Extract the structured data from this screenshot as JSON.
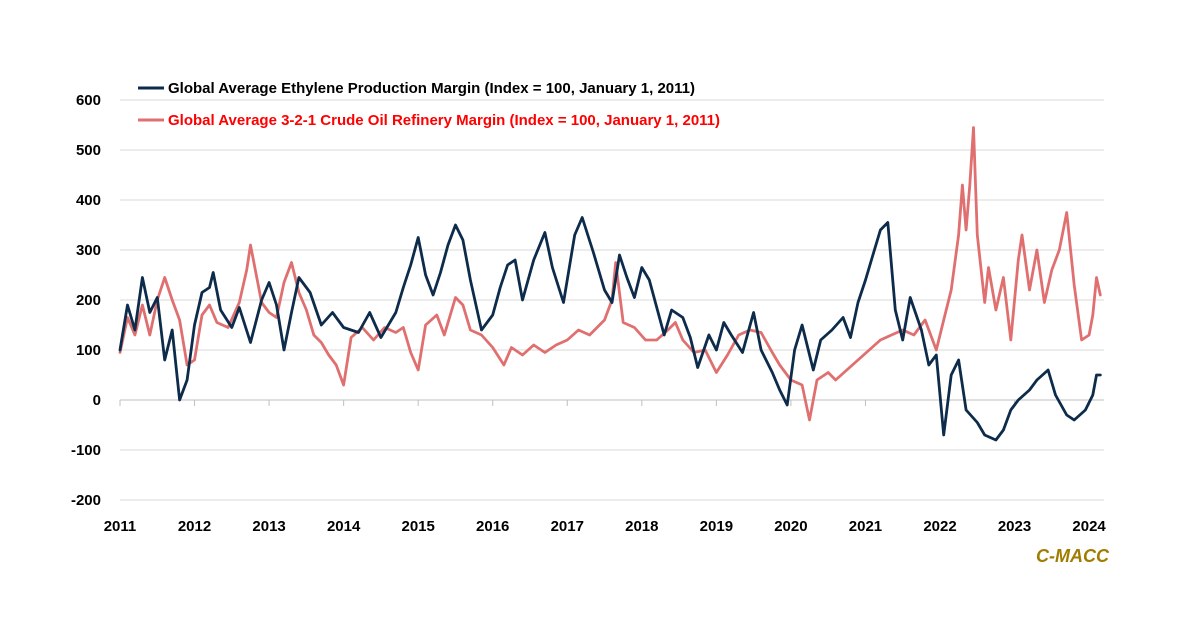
{
  "chart_data": {
    "type": "line",
    "xlim": [
      2011,
      2024.2
    ],
    "ylim": [
      -200,
      600
    ],
    "x_ticks": [
      "2011",
      "2012",
      "2013",
      "2014",
      "2015",
      "2016",
      "2017",
      "2018",
      "2019",
      "2020",
      "2021",
      "2022",
      "2023",
      "2024"
    ],
    "y_ticks": [
      "600",
      "500",
      "400",
      "300",
      "200",
      "100",
      "0",
      "-100",
      "-200"
    ],
    "grid": "horizontal",
    "legend_position": "top-left",
    "series": [
      {
        "name": "Global Average Ethylene Production Margin (Index = 100, January 1, 2011)",
        "color": "#0d2b4a",
        "points": [
          [
            2011.0,
            100
          ],
          [
            2011.1,
            190
          ],
          [
            2011.2,
            140
          ],
          [
            2011.3,
            245
          ],
          [
            2011.4,
            175
          ],
          [
            2011.5,
            205
          ],
          [
            2011.6,
            80
          ],
          [
            2011.7,
            140
          ],
          [
            2011.8,
            0
          ],
          [
            2011.9,
            40
          ],
          [
            2012.0,
            150
          ],
          [
            2012.1,
            215
          ],
          [
            2012.2,
            225
          ],
          [
            2012.25,
            255
          ],
          [
            2012.35,
            180
          ],
          [
            2012.5,
            145
          ],
          [
            2012.6,
            185
          ],
          [
            2012.75,
            115
          ],
          [
            2012.9,
            200
          ],
          [
            2013.0,
            235
          ],
          [
            2013.1,
            190
          ],
          [
            2013.2,
            100
          ],
          [
            2013.3,
            175
          ],
          [
            2013.4,
            245
          ],
          [
            2013.55,
            215
          ],
          [
            2013.7,
            150
          ],
          [
            2013.85,
            175
          ],
          [
            2014.0,
            145
          ],
          [
            2014.2,
            135
          ],
          [
            2014.35,
            175
          ],
          [
            2014.5,
            125
          ],
          [
            2014.7,
            175
          ],
          [
            2014.8,
            225
          ],
          [
            2014.9,
            270
          ],
          [
            2015.0,
            325
          ],
          [
            2015.1,
            250
          ],
          [
            2015.2,
            210
          ],
          [
            2015.3,
            255
          ],
          [
            2015.4,
            310
          ],
          [
            2015.5,
            350
          ],
          [
            2015.6,
            320
          ],
          [
            2015.7,
            240
          ],
          [
            2015.85,
            140
          ],
          [
            2016.0,
            170
          ],
          [
            2016.1,
            225
          ],
          [
            2016.2,
            270
          ],
          [
            2016.3,
            280
          ],
          [
            2016.4,
            200
          ],
          [
            2016.55,
            280
          ],
          [
            2016.7,
            335
          ],
          [
            2016.8,
            265
          ],
          [
            2016.95,
            195
          ],
          [
            2017.1,
            330
          ],
          [
            2017.2,
            365
          ],
          [
            2017.35,
            295
          ],
          [
            2017.5,
            220
          ],
          [
            2017.6,
            195
          ],
          [
            2017.7,
            290
          ],
          [
            2017.8,
            245
          ],
          [
            2017.9,
            205
          ],
          [
            2018.0,
            265
          ],
          [
            2018.1,
            240
          ],
          [
            2018.3,
            130
          ],
          [
            2018.4,
            180
          ],
          [
            2018.55,
            165
          ],
          [
            2018.65,
            125
          ],
          [
            2018.75,
            65
          ],
          [
            2018.9,
            130
          ],
          [
            2019.0,
            100
          ],
          [
            2019.1,
            155
          ],
          [
            2019.2,
            130
          ],
          [
            2019.35,
            95
          ],
          [
            2019.5,
            175
          ],
          [
            2019.6,
            100
          ],
          [
            2019.75,
            55
          ],
          [
            2019.85,
            20
          ],
          [
            2019.95,
            -10
          ],
          [
            2020.05,
            100
          ],
          [
            2020.15,
            150
          ],
          [
            2020.3,
            60
          ],
          [
            2020.4,
            120
          ],
          [
            2020.55,
            140
          ],
          [
            2020.7,
            165
          ],
          [
            2020.8,
            125
          ],
          [
            2020.9,
            195
          ],
          [
            2021.0,
            240
          ],
          [
            2021.1,
            290
          ],
          [
            2021.2,
            340
          ],
          [
            2021.3,
            355
          ],
          [
            2021.4,
            180
          ],
          [
            2021.5,
            120
          ],
          [
            2021.6,
            205
          ],
          [
            2021.75,
            140
          ],
          [
            2021.85,
            70
          ],
          [
            2021.95,
            90
          ],
          [
            2022.05,
            -70
          ],
          [
            2022.15,
            50
          ],
          [
            2022.25,
            80
          ],
          [
            2022.35,
            -20
          ],
          [
            2022.5,
            -45
          ],
          [
            2022.6,
            -70
          ],
          [
            2022.75,
            -80
          ],
          [
            2022.85,
            -60
          ],
          [
            2022.95,
            -20
          ],
          [
            2023.05,
            0
          ],
          [
            2023.2,
            20
          ],
          [
            2023.3,
            40
          ],
          [
            2023.45,
            60
          ],
          [
            2023.55,
            10
          ],
          [
            2023.7,
            -30
          ],
          [
            2023.8,
            -40
          ],
          [
            2023.95,
            -20
          ],
          [
            2024.05,
            10
          ],
          [
            2024.1,
            50
          ],
          [
            2024.15,
            50
          ]
        ]
      },
      {
        "name": "Global Average 3-2-1 Crude Oil Refinery Margin (Index = 100, January 1, 2011)",
        "color": "#e07070",
        "points": [
          [
            2011.0,
            95
          ],
          [
            2011.1,
            165
          ],
          [
            2011.2,
            130
          ],
          [
            2011.3,
            190
          ],
          [
            2011.4,
            130
          ],
          [
            2011.5,
            200
          ],
          [
            2011.6,
            245
          ],
          [
            2011.7,
            200
          ],
          [
            2011.8,
            160
          ],
          [
            2011.9,
            70
          ],
          [
            2012.0,
            80
          ],
          [
            2012.1,
            170
          ],
          [
            2012.2,
            190
          ],
          [
            2012.3,
            155
          ],
          [
            2012.45,
            145
          ],
          [
            2012.6,
            195
          ],
          [
            2012.7,
            260
          ],
          [
            2012.75,
            310
          ],
          [
            2012.9,
            195
          ],
          [
            2013.0,
            175
          ],
          [
            2013.1,
            165
          ],
          [
            2013.2,
            235
          ],
          [
            2013.3,
            275
          ],
          [
            2013.4,
            215
          ],
          [
            2013.5,
            180
          ],
          [
            2013.6,
            130
          ],
          [
            2013.7,
            115
          ],
          [
            2013.8,
            90
          ],
          [
            2013.9,
            70
          ],
          [
            2014.0,
            30
          ],
          [
            2014.1,
            125
          ],
          [
            2014.25,
            145
          ],
          [
            2014.4,
            120
          ],
          [
            2014.55,
            145
          ],
          [
            2014.7,
            135
          ],
          [
            2014.8,
            145
          ],
          [
            2014.9,
            95
          ],
          [
            2015.0,
            60
          ],
          [
            2015.1,
            150
          ],
          [
            2015.25,
            170
          ],
          [
            2015.35,
            130
          ],
          [
            2015.5,
            205
          ],
          [
            2015.6,
            190
          ],
          [
            2015.7,
            140
          ],
          [
            2015.85,
            130
          ],
          [
            2016.0,
            105
          ],
          [
            2016.15,
            70
          ],
          [
            2016.25,
            105
          ],
          [
            2016.4,
            90
          ],
          [
            2016.55,
            110
          ],
          [
            2016.7,
            95
          ],
          [
            2016.85,
            110
          ],
          [
            2017.0,
            120
          ],
          [
            2017.15,
            140
          ],
          [
            2017.3,
            130
          ],
          [
            2017.5,
            160
          ],
          [
            2017.6,
            200
          ],
          [
            2017.65,
            275
          ],
          [
            2017.75,
            155
          ],
          [
            2017.9,
            145
          ],
          [
            2018.05,
            120
          ],
          [
            2018.2,
            120
          ],
          [
            2018.35,
            140
          ],
          [
            2018.45,
            155
          ],
          [
            2018.55,
            120
          ],
          [
            2018.7,
            95
          ],
          [
            2018.85,
            100
          ],
          [
            2018.95,
            70
          ],
          [
            2019.0,
            55
          ],
          [
            2019.15,
            90
          ],
          [
            2019.3,
            130
          ],
          [
            2019.45,
            140
          ],
          [
            2019.6,
            135
          ],
          [
            2019.75,
            95
          ],
          [
            2019.85,
            70
          ],
          [
            2020.0,
            40
          ],
          [
            2020.15,
            30
          ],
          [
            2020.25,
            -40
          ],
          [
            2020.35,
            40
          ],
          [
            2020.5,
            55
          ],
          [
            2020.6,
            40
          ],
          [
            2020.75,
            60
          ],
          [
            2020.9,
            80
          ],
          [
            2021.05,
            100
          ],
          [
            2021.2,
            120
          ],
          [
            2021.35,
            130
          ],
          [
            2021.5,
            140
          ],
          [
            2021.65,
            130
          ],
          [
            2021.8,
            160
          ],
          [
            2021.95,
            100
          ],
          [
            2022.05,
            160
          ],
          [
            2022.15,
            220
          ],
          [
            2022.25,
            330
          ],
          [
            2022.3,
            430
          ],
          [
            2022.35,
            340
          ],
          [
            2022.4,
            430
          ],
          [
            2022.45,
            545
          ],
          [
            2022.5,
            330
          ],
          [
            2022.6,
            195
          ],
          [
            2022.65,
            265
          ],
          [
            2022.75,
            180
          ],
          [
            2022.85,
            245
          ],
          [
            2022.95,
            120
          ],
          [
            2023.05,
            280
          ],
          [
            2023.1,
            330
          ],
          [
            2023.2,
            220
          ],
          [
            2023.3,
            300
          ],
          [
            2023.4,
            195
          ],
          [
            2023.5,
            260
          ],
          [
            2023.6,
            300
          ],
          [
            2023.7,
            375
          ],
          [
            2023.8,
            230
          ],
          [
            2023.9,
            120
          ],
          [
            2024.0,
            130
          ],
          [
            2024.05,
            170
          ],
          [
            2024.1,
            245
          ],
          [
            2024.15,
            210
          ]
        ]
      }
    ]
  },
  "credit": "C-MACC"
}
